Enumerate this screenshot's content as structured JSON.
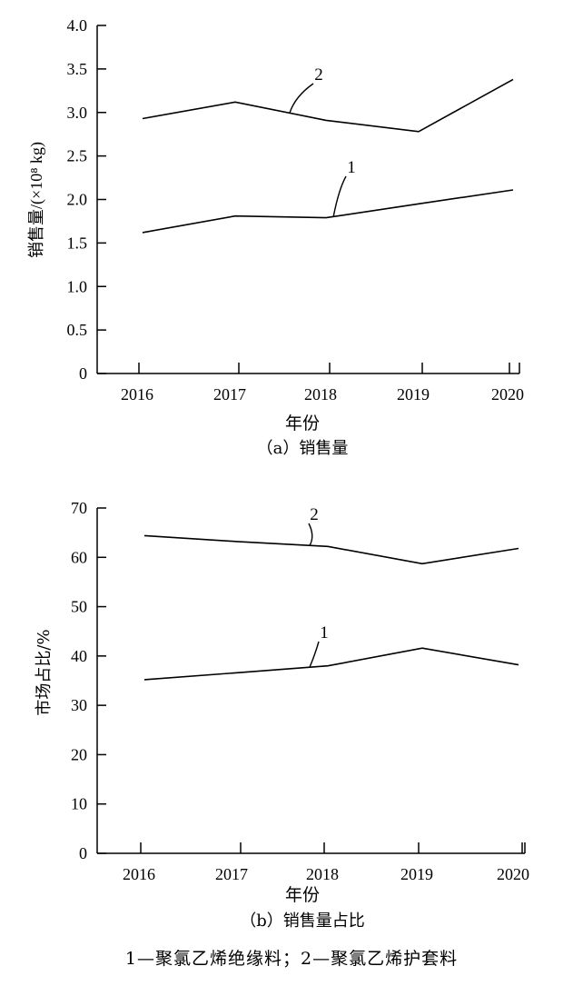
{
  "chart_data": [
    {
      "type": "line",
      "caption": "（a）销售量",
      "xlabel": "年份",
      "ylabel": "销售量/(×10⁸ kg)",
      "categories": [
        "2016",
        "2017",
        "2018",
        "2019",
        "2020"
      ],
      "ylim": [
        0,
        4.0
      ],
      "yticks": [
        "0",
        "0.5",
        "1.0",
        "1.5",
        "2.0",
        "2.5",
        "3.0",
        "3.5",
        "4.0"
      ],
      "grid": false,
      "series": [
        {
          "name": "1",
          "values": [
            1.62,
            1.81,
            1.79,
            1.95,
            2.11
          ]
        },
        {
          "name": "2",
          "values": [
            2.93,
            3.12,
            2.91,
            2.78,
            3.38
          ]
        }
      ]
    },
    {
      "type": "line",
      "caption": "（b）销售量占比",
      "xlabel": "年份",
      "ylabel": "市场占比/%",
      "categories": [
        "2016",
        "2017",
        "2018",
        "2019",
        "2020"
      ],
      "ylim": [
        0,
        70
      ],
      "yticks": [
        "0",
        "10",
        "20",
        "30",
        "40",
        "50",
        "60",
        "70"
      ],
      "grid": false,
      "series": [
        {
          "name": "1",
          "values": [
            35.2,
            36.6,
            38.0,
            41.6,
            38.2
          ]
        },
        {
          "name": "2",
          "values": [
            64.4,
            63.2,
            62.2,
            58.7,
            61.8
          ]
        }
      ]
    }
  ],
  "legend": "1—聚氯乙烯绝缘料；2—聚氯乙烯护套料"
}
